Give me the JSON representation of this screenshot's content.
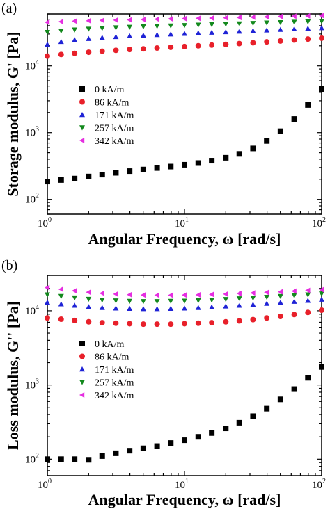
{
  "chart_data": [
    {
      "type": "scatter",
      "panel_label": "(a)",
      "title": "",
      "xlabel": "Angular Frequency, ω [rad/s]",
      "ylabel": "Storage modulus, G' [Pa]",
      "x_scale": "log",
      "y_scale": "log",
      "xlim": [
        1,
        100
      ],
      "ylim": [
        60,
        60000
      ],
      "x_ticks": [
        {
          "value": 1,
          "base": "10",
          "exp": "0"
        },
        {
          "value": 10,
          "base": "10",
          "exp": "1"
        },
        {
          "value": 100,
          "base": "10",
          "exp": "2"
        }
      ],
      "y_ticks": [
        {
          "value": 100,
          "base": "10",
          "exp": "2"
        },
        {
          "value": 1000,
          "base": "10",
          "exp": "3"
        },
        {
          "value": 10000,
          "base": "10",
          "exp": "4"
        }
      ],
      "legend_position": "middle-left",
      "series": [
        {
          "name": "0 kA/m",
          "marker": "square",
          "color": "#000000",
          "x": [
            1.0,
            1.26,
            1.58,
            2.0,
            2.51,
            3.16,
            3.98,
            5.01,
            6.31,
            7.94,
            10.0,
            12.6,
            15.8,
            20.0,
            25.1,
            31.6,
            39.8,
            50.1,
            63.1,
            79.4,
            100.0
          ],
          "y": [
            185,
            195,
            205,
            220,
            235,
            250,
            265,
            280,
            295,
            310,
            330,
            350,
            380,
            420,
            480,
            580,
            750,
            1050,
            1600,
            2600,
            4500
          ]
        },
        {
          "name": "86 kA/m",
          "marker": "circle",
          "color": "#e8202a",
          "x": [
            1.0,
            1.26,
            1.58,
            2.0,
            2.51,
            3.16,
            3.98,
            5.01,
            6.31,
            7.94,
            10.0,
            12.6,
            15.8,
            20.0,
            25.1,
            31.6,
            39.8,
            50.1,
            63.1,
            79.4,
            100.0
          ],
          "y": [
            14000,
            14800,
            15400,
            16000,
            16600,
            17100,
            17600,
            18000,
            18500,
            19000,
            19500,
            20000,
            20500,
            21000,
            21600,
            22200,
            22900,
            23600,
            24400,
            25200,
            26000
          ]
        },
        {
          "name": "171 kA/m",
          "marker": "triangle-up",
          "color": "#1f23d6",
          "x": [
            1.0,
            1.26,
            1.58,
            2.0,
            2.51,
            3.16,
            3.98,
            5.01,
            6.31,
            7.94,
            10.0,
            12.6,
            15.8,
            20.0,
            25.1,
            31.6,
            39.8,
            50.1,
            63.1,
            79.4,
            100.0
          ],
          "y": [
            21000,
            23000,
            24500,
            25500,
            26500,
            27200,
            28000,
            28600,
            29200,
            29800,
            30400,
            31000,
            31600,
            32200,
            32800,
            33500,
            34200,
            34900,
            35600,
            36300,
            37000
          ]
        },
        {
          "name": "257 kA/m",
          "marker": "triangle-down",
          "color": "#13891d",
          "x": [
            1.0,
            1.26,
            1.58,
            2.0,
            2.51,
            3.16,
            3.98,
            5.01,
            6.31,
            7.94,
            10.0,
            12.6,
            15.8,
            20.0,
            25.1,
            31.6,
            39.8,
            50.1,
            63.1,
            79.4,
            100.0
          ],
          "y": [
            32000,
            33500,
            34800,
            35800,
            36700,
            37500,
            38200,
            38800,
            39400,
            40000,
            40600,
            41200,
            41800,
            42400,
            43000,
            43600,
            44200,
            44800,
            45400,
            46000,
            46600
          ]
        },
        {
          "name": "342 kA/m",
          "marker": "triangle-left",
          "color": "#e52ee0",
          "x": [
            1.0,
            1.26,
            1.58,
            2.0,
            2.51,
            3.16,
            3.98,
            5.01,
            6.31,
            7.94,
            10.0,
            12.6,
            15.8,
            20.0,
            25.1,
            31.6,
            39.8,
            50.1,
            63.1,
            79.4,
            100.0
          ],
          "y": [
            45000,
            46000,
            46800,
            47400,
            48000,
            48500,
            49000,
            49500,
            50000,
            50500,
            51000,
            51500,
            52000,
            52500,
            53000,
            53600,
            54200,
            54800,
            55400,
            56000,
            56600
          ]
        }
      ]
    },
    {
      "type": "scatter",
      "panel_label": "(b)",
      "title": "",
      "xlabel": "Angular Frequency, ω [rad/s]",
      "ylabel": "Loss modulus, G'' [Pa]",
      "x_scale": "log",
      "y_scale": "log",
      "xlim": [
        1,
        100
      ],
      "ylim": [
        60,
        30000
      ],
      "x_ticks": [
        {
          "value": 1,
          "base": "10",
          "exp": "0"
        },
        {
          "value": 10,
          "base": "10",
          "exp": "1"
        },
        {
          "value": 100,
          "base": "10",
          "exp": "2"
        }
      ],
      "y_ticks": [
        {
          "value": 100,
          "base": "10",
          "exp": "2"
        },
        {
          "value": 1000,
          "base": "10",
          "exp": "3"
        },
        {
          "value": 10000,
          "base": "10",
          "exp": "4"
        }
      ],
      "legend_position": "middle-left",
      "series": [
        {
          "name": "0 kA/m",
          "marker": "square",
          "color": "#000000",
          "x": [
            1.0,
            1.26,
            1.58,
            2.0,
            2.51,
            3.16,
            3.98,
            5.01,
            6.31,
            7.94,
            10.0,
            12.6,
            15.8,
            20.0,
            25.1,
            31.6,
            39.8,
            50.1,
            63.1,
            79.4,
            100.0
          ],
          "y": [
            100,
            100,
            100,
            98,
            110,
            120,
            130,
            140,
            150,
            165,
            180,
            200,
            225,
            260,
            310,
            380,
            480,
            640,
            880,
            1250,
            1750
          ]
        },
        {
          "name": "86 kA/m",
          "marker": "circle",
          "color": "#e8202a",
          "x": [
            1.0,
            1.26,
            1.58,
            2.0,
            2.51,
            3.16,
            3.98,
            5.01,
            6.31,
            7.94,
            10.0,
            12.6,
            15.8,
            20.0,
            25.1,
            31.6,
            39.8,
            50.1,
            63.1,
            79.4,
            100.0
          ],
          "y": [
            8000,
            7700,
            7400,
            7100,
            6900,
            6800,
            6700,
            6600,
            6600,
            6600,
            6700,
            6800,
            6900,
            7100,
            7300,
            7600,
            8000,
            8400,
            8900,
            9500,
            10200
          ]
        },
        {
          "name": "171 kA/m",
          "marker": "triangle-up",
          "color": "#1f23d6",
          "x": [
            1.0,
            1.26,
            1.58,
            2.0,
            2.51,
            3.16,
            3.98,
            5.01,
            6.31,
            7.94,
            10.0,
            12.6,
            15.8,
            20.0,
            25.1,
            31.6,
            39.8,
            50.1,
            63.1,
            79.4,
            100.0
          ],
          "y": [
            13000,
            12300,
            11800,
            11300,
            11000,
            10800,
            10700,
            10600,
            10600,
            10700,
            10800,
            11000,
            11200,
            11500,
            11800,
            12100,
            12500,
            12900,
            13300,
            13700,
            14200
          ]
        },
        {
          "name": "257 kA/m",
          "marker": "triangle-down",
          "color": "#13891d",
          "x": [
            1.0,
            1.26,
            1.58,
            2.0,
            2.51,
            3.16,
            3.98,
            5.01,
            6.31,
            7.94,
            10.0,
            12.6,
            15.8,
            20.0,
            25.1,
            31.6,
            39.8,
            50.1,
            63.1,
            79.4,
            100.0
          ],
          "y": [
            16500,
            15700,
            15000,
            14400,
            14000,
            13700,
            13500,
            13400,
            13400,
            13500,
            13600,
            13800,
            14000,
            14300,
            14600,
            14900,
            15300,
            15700,
            16100,
            16500,
            17000
          ]
        },
        {
          "name": "342 kA/m",
          "marker": "triangle-left",
          "color": "#e52ee0",
          "x": [
            1.0,
            1.26,
            1.58,
            2.0,
            2.51,
            3.16,
            3.98,
            5.01,
            6.31,
            7.94,
            10.0,
            12.6,
            15.8,
            20.0,
            25.1,
            31.6,
            39.8,
            50.1,
            63.1,
            79.4,
            100.0
          ],
          "y": [
            20500,
            19500,
            18600,
            17800,
            17200,
            16800,
            16500,
            16300,
            16200,
            16200,
            16300,
            16400,
            16600,
            16800,
            17100,
            17400,
            17700,
            18000,
            18400,
            18800,
            19200
          ]
        }
      ]
    }
  ]
}
